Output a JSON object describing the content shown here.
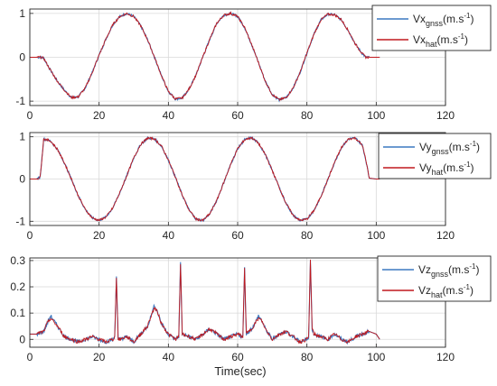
{
  "figure": {
    "xlabel": "Time(sec)"
  },
  "colors": {
    "gnss": "#3c78c0",
    "hat": "#c0191e",
    "grid": "#d9d9d9",
    "axis": "#262626"
  },
  "chart_data": [
    {
      "type": "line",
      "xlim": [
        0,
        120
      ],
      "ylim": [
        -1.1,
        1.1
      ],
      "xticks": [
        "0",
        "20",
        "40",
        "60",
        "80",
        "100",
        "120"
      ],
      "yticks": [
        {
          "v": -1,
          "label": "-1"
        },
        {
          "v": 0,
          "label": "0"
        },
        {
          "v": 1,
          "label": "1"
        }
      ],
      "grid": true,
      "legend_position": "top-right",
      "legend": [
        {
          "base": "Vx",
          "sub": "gnss",
          "unit": "(m.s",
          "exp": "-1",
          "close": ")"
        },
        {
          "base": "Vx",
          "sub": "hat",
          "unit": "(m.s",
          "exp": "-1",
          "close": ")"
        }
      ],
      "series": [
        {
          "key": "gnss",
          "x": [
            0,
            2,
            3,
            4,
            6,
            8,
            10,
            12,
            14,
            16,
            18,
            20,
            22,
            24,
            26,
            28,
            30,
            32,
            34,
            36,
            38,
            40,
            42,
            44,
            46,
            48,
            50,
            52,
            54,
            56,
            58,
            60,
            62,
            64,
            66,
            68,
            70,
            72,
            74,
            76,
            78,
            80,
            82,
            84,
            86,
            88,
            90,
            92,
            94,
            96,
            97,
            98,
            100,
            101
          ],
          "y": [
            0,
            0,
            0,
            -0.02,
            -0.3,
            -0.55,
            -0.75,
            -0.92,
            -0.9,
            -0.7,
            -0.35,
            0.05,
            0.42,
            0.75,
            0.93,
            1.0,
            0.93,
            0.72,
            0.4,
            0.0,
            -0.42,
            -0.78,
            -0.95,
            -0.93,
            -0.72,
            -0.4,
            0.02,
            0.42,
            0.78,
            0.96,
            1.0,
            0.93,
            0.68,
            0.3,
            -0.12,
            -0.55,
            -0.85,
            -0.97,
            -0.92,
            -0.7,
            -0.35,
            0.1,
            0.52,
            0.85,
            0.98,
            0.97,
            0.85,
            0.6,
            0.3,
            0.08,
            0.0,
            0,
            0,
            0
          ]
        },
        {
          "key": "hat",
          "x": [
            0,
            2,
            3,
            4,
            6,
            8,
            10,
            12,
            14,
            16,
            18,
            20,
            22,
            24,
            26,
            28,
            30,
            32,
            34,
            36,
            38,
            40,
            42,
            44,
            46,
            48,
            50,
            52,
            54,
            56,
            58,
            60,
            62,
            64,
            66,
            68,
            70,
            72,
            74,
            76,
            78,
            80,
            82,
            84,
            86,
            88,
            90,
            92,
            94,
            96,
            97,
            98,
            100,
            101
          ],
          "y": [
            0,
            0,
            0,
            -0.02,
            -0.3,
            -0.55,
            -0.75,
            -0.92,
            -0.9,
            -0.7,
            -0.35,
            0.05,
            0.42,
            0.75,
            0.93,
            1.0,
            0.93,
            0.72,
            0.4,
            0.0,
            -0.42,
            -0.78,
            -0.95,
            -0.93,
            -0.72,
            -0.4,
            0.02,
            0.42,
            0.78,
            0.96,
            1.0,
            0.93,
            0.68,
            0.3,
            -0.12,
            -0.55,
            -0.85,
            -0.97,
            -0.92,
            -0.7,
            -0.35,
            0.1,
            0.52,
            0.85,
            0.98,
            0.97,
            0.85,
            0.6,
            0.3,
            0.08,
            0.0,
            0,
            0,
            0
          ]
        }
      ]
    },
    {
      "type": "line",
      "xlim": [
        0,
        120
      ],
      "ylim": [
        -1.1,
        1.1
      ],
      "xticks": [
        "0",
        "20",
        "40",
        "60",
        "80",
        "100",
        "120"
      ],
      "yticks": [
        {
          "v": -1,
          "label": "-1"
        },
        {
          "v": 0,
          "label": "0"
        },
        {
          "v": 1,
          "label": "1"
        }
      ],
      "grid": true,
      "legend_position": "top-right",
      "legend": [
        {
          "base": "Vy",
          "sub": "gnss",
          "unit": "(m.s",
          "exp": "-1",
          "close": ")"
        },
        {
          "base": "Vy",
          "sub": "hat",
          "unit": "(m.s",
          "exp": "-1",
          "close": ")"
        }
      ],
      "series": [
        {
          "key": "gnss",
          "x": [
            0,
            2,
            3,
            3.5,
            4,
            6,
            8,
            10,
            12,
            14,
            16,
            18,
            20,
            22,
            24,
            26,
            28,
            30,
            32,
            34,
            36,
            38,
            40,
            42,
            44,
            46,
            48,
            50,
            52,
            54,
            56,
            58,
            60,
            62,
            64,
            66,
            68,
            70,
            72,
            74,
            76,
            78,
            80,
            82,
            84,
            86,
            88,
            90,
            92,
            94,
            96,
            97,
            98,
            100,
            101
          ],
          "y": [
            0,
            0,
            0.05,
            0.5,
            0.95,
            0.9,
            0.7,
            0.38,
            0.0,
            -0.4,
            -0.72,
            -0.92,
            -0.98,
            -0.9,
            -0.68,
            -0.32,
            0.08,
            0.5,
            0.82,
            0.97,
            0.95,
            0.78,
            0.45,
            0.05,
            -0.38,
            -0.74,
            -0.95,
            -0.98,
            -0.82,
            -0.5,
            -0.08,
            0.35,
            0.72,
            0.93,
            0.98,
            0.85,
            0.58,
            0.2,
            -0.2,
            -0.58,
            -0.86,
            -0.98,
            -0.95,
            -0.75,
            -0.42,
            -0.02,
            0.4,
            0.75,
            0.95,
            0.97,
            0.8,
            0.45,
            0.02,
            0,
            0
          ]
        },
        {
          "key": "hat",
          "x": [
            0,
            2,
            3,
            3.5,
            4,
            6,
            8,
            10,
            12,
            14,
            16,
            18,
            20,
            22,
            24,
            26,
            28,
            30,
            32,
            34,
            36,
            38,
            40,
            42,
            44,
            46,
            48,
            50,
            52,
            54,
            56,
            58,
            60,
            62,
            64,
            66,
            68,
            70,
            72,
            74,
            76,
            78,
            80,
            82,
            84,
            86,
            88,
            90,
            92,
            94,
            96,
            97,
            98,
            100,
            101
          ],
          "y": [
            0,
            0,
            0.05,
            0.5,
            0.95,
            0.9,
            0.7,
            0.38,
            0.0,
            -0.4,
            -0.72,
            -0.92,
            -0.98,
            -0.9,
            -0.68,
            -0.32,
            0.08,
            0.5,
            0.82,
            0.97,
            0.95,
            0.78,
            0.45,
            0.05,
            -0.38,
            -0.74,
            -0.95,
            -0.98,
            -0.82,
            -0.5,
            -0.08,
            0.35,
            0.72,
            0.93,
            0.98,
            0.85,
            0.58,
            0.2,
            -0.2,
            -0.58,
            -0.86,
            -0.98,
            -0.95,
            -0.75,
            -0.42,
            -0.02,
            0.4,
            0.75,
            0.95,
            0.97,
            0.8,
            0.45,
            0.02,
            0,
            0
          ]
        }
      ]
    },
    {
      "type": "line",
      "xlim": [
        0,
        120
      ],
      "ylim": [
        -0.03,
        0.31
      ],
      "xticks": [
        "0",
        "20",
        "40",
        "60",
        "80",
        "100",
        "120"
      ],
      "yticks": [
        {
          "v": 0,
          "label": "0"
        },
        {
          "v": 0.1,
          "label": "0.1"
        },
        {
          "v": 0.2,
          "label": "0.2"
        },
        {
          "v": 0.3,
          "label": "0.3"
        }
      ],
      "grid": true,
      "legend_position": "top-right",
      "legend": [
        {
          "base": "Vz",
          "sub": "gnss",
          "unit": "(m.s",
          "exp": "-1",
          "close": ")"
        },
        {
          "base": "Vz",
          "sub": "hat",
          "unit": "(m.s",
          "exp": "-1",
          "close": ")"
        }
      ],
      "series": [
        {
          "key": "gnss",
          "x": [
            0,
            2,
            4,
            5,
            6,
            8,
            10,
            12,
            14,
            16,
            18,
            20,
            22,
            24,
            24.5,
            25,
            25.5,
            26,
            28,
            30,
            32,
            34,
            35,
            36,
            37,
            38,
            40,
            42,
            43,
            43.5,
            44,
            46,
            48,
            50,
            52,
            54,
            56,
            58,
            60,
            61.5,
            62,
            62.5,
            64,
            65,
            66,
            67,
            68,
            70,
            72,
            74,
            76,
            78,
            80,
            80.5,
            81,
            81.5,
            82,
            84,
            86,
            88,
            90,
            92,
            94,
            96,
            98,
            100,
            101
          ],
          "y": [
            0.02,
            0.02,
            0.03,
            0.06,
            0.09,
            0.05,
            0.01,
            0,
            -0.01,
            0,
            0.01,
            0,
            -0.01,
            0,
            0.01,
            0.24,
            0,
            0,
            0.01,
            -0.01,
            0.02,
            0.05,
            0.09,
            0.13,
            0.1,
            0.06,
            0.02,
            0,
            0.01,
            0.29,
            0.02,
            0.01,
            0,
            0.02,
            0.04,
            0.02,
            0,
            0.01,
            0.02,
            0.01,
            0.27,
            0.02,
            0.04,
            0.06,
            0.09,
            0.07,
            0.04,
            0,
            0.02,
            0.03,
            0.01,
            -0.01,
            0,
            0.01,
            0.3,
            0.04,
            0.02,
            0.01,
            0,
            0.02,
            0,
            -0.01,
            0.01,
            0.02,
            0.03,
            0.02,
            0
          ]
        },
        {
          "key": "hat",
          "x": [
            0,
            2,
            4,
            5,
            6,
            8,
            10,
            12,
            14,
            16,
            18,
            20,
            22,
            24,
            24.5,
            25,
            25.5,
            26,
            28,
            30,
            32,
            34,
            35,
            36,
            37,
            38,
            40,
            42,
            43,
            43.5,
            44,
            46,
            48,
            50,
            52,
            54,
            56,
            58,
            60,
            61.5,
            62,
            62.5,
            64,
            65,
            66,
            67,
            68,
            70,
            72,
            74,
            76,
            78,
            80,
            80.5,
            81,
            81.5,
            82,
            84,
            86,
            88,
            90,
            92,
            94,
            96,
            98,
            100,
            101
          ],
          "y": [
            0.02,
            0.02,
            0.03,
            0.06,
            0.08,
            0.05,
            0.01,
            0,
            -0.01,
            0,
            0.01,
            0,
            -0.01,
            0,
            0.01,
            0.24,
            0,
            0,
            0.01,
            -0.01,
            0.02,
            0.05,
            0.09,
            0.12,
            0.1,
            0.06,
            0.02,
            0,
            0.01,
            0.29,
            0.02,
            0.01,
            0,
            0.02,
            0.04,
            0.02,
            0,
            0.01,
            0.02,
            0.01,
            0.27,
            0.02,
            0.04,
            0.06,
            0.08,
            0.07,
            0.04,
            0,
            0.02,
            0.03,
            0.01,
            -0.01,
            0,
            0.01,
            0.3,
            0.04,
            0.02,
            0.01,
            0,
            0.02,
            0,
            -0.01,
            0.01,
            0.02,
            0.03,
            0.02,
            0
          ]
        }
      ]
    }
  ]
}
